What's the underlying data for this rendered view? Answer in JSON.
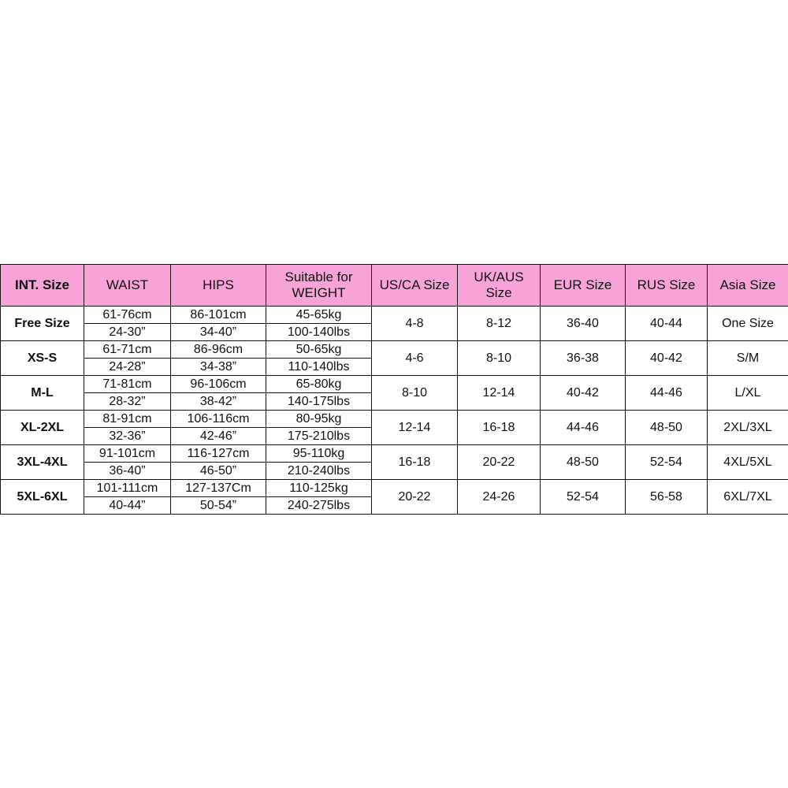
{
  "table": {
    "headers": [
      "INT. Size",
      "WAIST",
      "HIPS",
      "Suitable for WEIGHT",
      "US/CA Size",
      "UK/AUS Size",
      "EUR Size",
      "RUS Size",
      "Asia Size"
    ],
    "rows": [
      {
        "int": "Free Size",
        "waist": [
          "61-76cm",
          "24-30”"
        ],
        "hips": [
          "86-101cm",
          "34-40”"
        ],
        "weight": [
          "45-65kg",
          "100-140lbs"
        ],
        "us": "4-8",
        "uk": "8-12",
        "eur": "36-40",
        "rus": "40-44",
        "asia": "One Size"
      },
      {
        "int": "XS-S",
        "waist": [
          "61-71cm",
          "24-28”"
        ],
        "hips": [
          "86-96cm",
          "34-38”"
        ],
        "weight": [
          "50-65kg",
          "110-140lbs"
        ],
        "us": "4-6",
        "uk": "8-10",
        "eur": "36-38",
        "rus": "40-42",
        "asia": "S/M"
      },
      {
        "int": "M-L",
        "waist": [
          "71-81cm",
          "28-32”"
        ],
        "hips": [
          "96-106cm",
          "38-42”"
        ],
        "weight": [
          "65-80kg",
          "140-175lbs"
        ],
        "us": "8-10",
        "uk": "12-14",
        "eur": "40-42",
        "rus": "44-46",
        "asia": "L/XL"
      },
      {
        "int": "XL-2XL",
        "waist": [
          "81-91cm",
          "32-36”"
        ],
        "hips": [
          "106-116cm",
          "42-46”"
        ],
        "weight": [
          "80-95kg",
          "175-210lbs"
        ],
        "us": "12-14",
        "uk": "16-18",
        "eur": "44-46",
        "rus": "48-50",
        "asia": "2XL/3XL"
      },
      {
        "int": "3XL-4XL",
        "waist": [
          "91-101cm",
          "36-40”"
        ],
        "hips": [
          "116-127cm",
          "46-50”"
        ],
        "weight": [
          "95-110kg",
          "210-240lbs"
        ],
        "us": "16-18",
        "uk": "20-22",
        "eur": "48-50",
        "rus": "52-54",
        "asia": "4XL/5XL"
      },
      {
        "int": "5XL-6XL",
        "waist": [
          "101-111cm",
          "40-44”"
        ],
        "hips": [
          "127-137Cm",
          "50-54”"
        ],
        "weight": [
          "110-125kg",
          "240-275lbs"
        ],
        "us": "20-22",
        "uk": "24-26",
        "eur": "52-54",
        "rus": "56-58",
        "asia": "6XL/7XL"
      }
    ]
  }
}
